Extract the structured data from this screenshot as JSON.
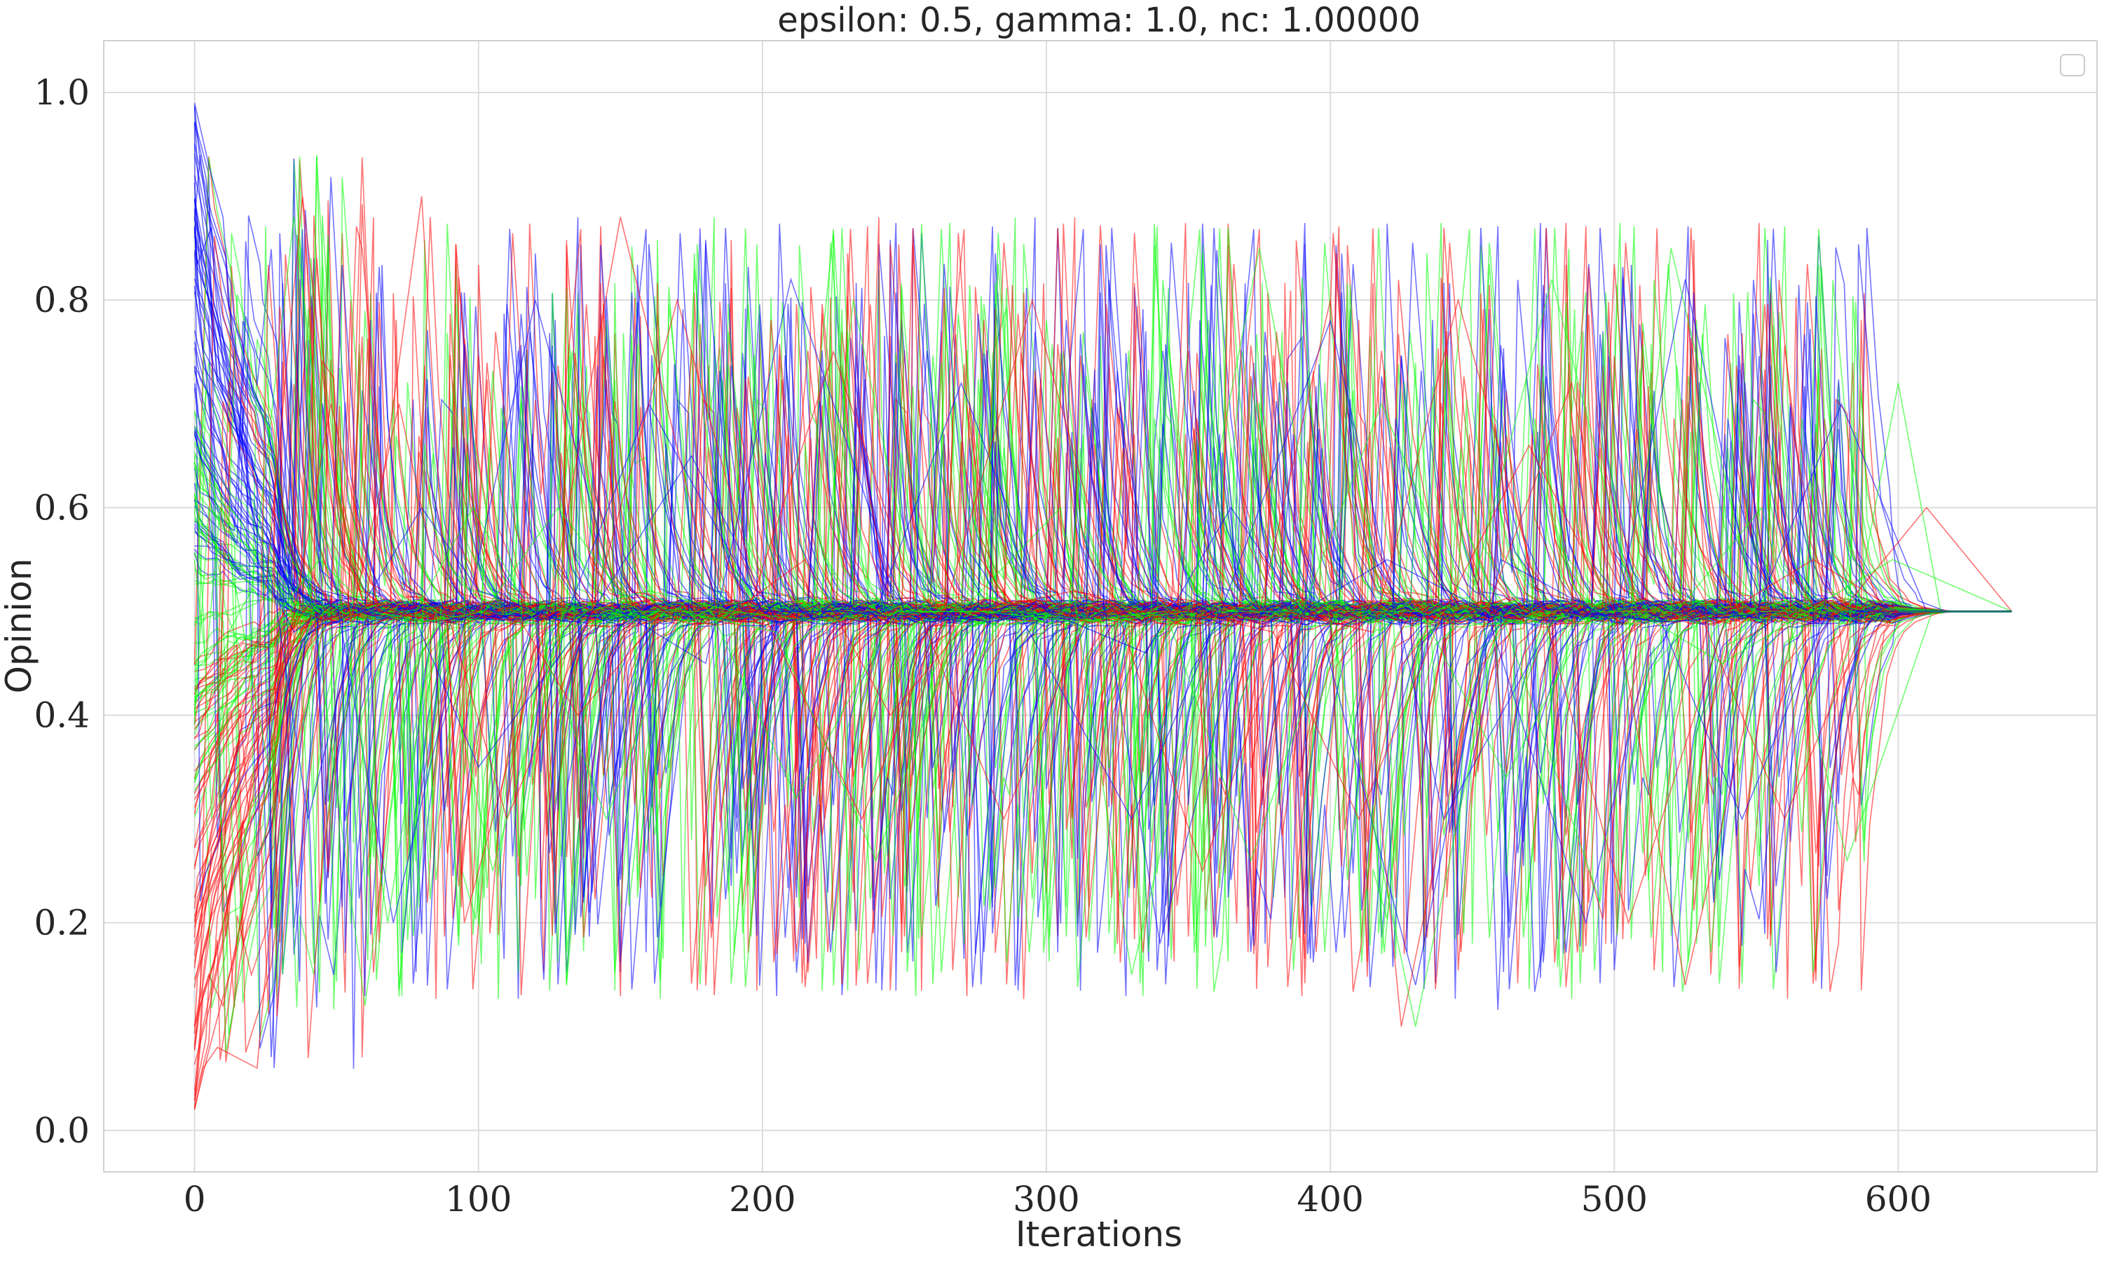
{
  "chart_data": {
    "type": "line",
    "title": "epsilon: 0.5, gamma: 1.0, nc: 1.00000",
    "xlabel": "Iterations",
    "ylabel": "Opinion",
    "xlim": [
      -32,
      670
    ],
    "ylim": [
      -0.04,
      1.05
    ],
    "xticks": [
      0,
      100,
      200,
      300,
      400,
      500,
      600
    ],
    "xtick_labels": [
      "0",
      "100",
      "200",
      "300",
      "400",
      "500",
      "600"
    ],
    "yticks": [
      0.0,
      0.2,
      0.4,
      0.6,
      0.8,
      1.0
    ],
    "ytick_labels": [
      "0.0",
      "0.2",
      "0.4",
      "0.6",
      "0.8",
      "1.0"
    ],
    "grid": true,
    "legend": {
      "placement": "top-right",
      "entries": []
    },
    "consensus_value": 0.5,
    "x_end": 640,
    "series_colors": [
      "#ff0000",
      "#00ff00",
      "#0000ff"
    ],
    "series": [
      {
        "color": "#0000ff",
        "x": [
          0,
          5,
          10,
          15,
          20,
          30,
          45,
          60,
          80,
          100,
          130,
          160,
          200,
          230,
          260,
          290,
          330,
          360,
          400,
          440,
          480,
          520,
          560,
          590,
          620,
          640
        ],
        "y": [
          0.99,
          0.93,
          0.88,
          0.7,
          0.6,
          0.55,
          0.52,
          0.51,
          0.6,
          0.52,
          0.49,
          0.7,
          0.5,
          0.5,
          0.49,
          0.5,
          0.3,
          0.49,
          0.78,
          0.3,
          0.5,
          0.49,
          0.5,
          0.5,
          0.5,
          0.5
        ]
      },
      {
        "color": "#0000ff",
        "x": [
          0,
          4,
          8,
          14,
          22,
          35,
          50,
          70,
          95,
          120,
          150,
          180,
          210,
          250,
          280,
          320,
          340,
          370,
          395,
          430,
          460,
          500,
          525,
          550,
          580,
          610,
          640
        ],
        "y": [
          0.95,
          0.9,
          0.82,
          0.76,
          0.55,
          0.48,
          0.51,
          0.2,
          0.49,
          0.8,
          0.5,
          0.45,
          0.82,
          0.5,
          0.49,
          0.51,
          0.18,
          0.5,
          0.5,
          0.14,
          0.55,
          0.49,
          0.82,
          0.5,
          0.7,
          0.5,
          0.5
        ]
      },
      {
        "color": "#0000ff",
        "x": [
          0,
          6,
          12,
          18,
          28,
          40,
          58,
          75,
          100,
          140,
          175,
          205,
          240,
          270,
          300,
          335,
          365,
          390,
          420,
          455,
          490,
          515,
          545,
          575,
          600,
          640
        ],
        "y": [
          0.92,
          0.85,
          0.72,
          0.62,
          0.52,
          0.3,
          0.5,
          0.51,
          0.35,
          0.5,
          0.65,
          0.49,
          0.5,
          0.72,
          0.5,
          0.46,
          0.6,
          0.5,
          0.55,
          0.5,
          0.2,
          0.5,
          0.3,
          0.5,
          0.5,
          0.5
        ]
      },
      {
        "color": "#ff0000",
        "x": [
          0,
          3,
          8,
          15,
          22,
          30,
          45,
          60,
          80,
          95,
          125,
          150,
          185,
          215,
          245,
          275,
          310,
          345,
          375,
          400,
          425,
          455,
          485,
          525,
          555,
          580,
          610,
          640
        ],
        "y": [
          0.02,
          0.06,
          0.08,
          0.07,
          0.06,
          0.3,
          0.48,
          0.5,
          0.9,
          0.2,
          0.5,
          0.88,
          0.49,
          0.55,
          0.4,
          0.5,
          0.52,
          0.49,
          0.5,
          0.8,
          0.1,
          0.5,
          0.72,
          0.14,
          0.5,
          0.5,
          0.6,
          0.5
        ]
      },
      {
        "color": "#ff0000",
        "x": [
          0,
          5,
          10,
          20,
          32,
          48,
          65,
          90,
          110,
          140,
          170,
          200,
          235,
          265,
          295,
          325,
          355,
          385,
          415,
          445,
          475,
          505,
          540,
          570,
          600,
          640
        ],
        "y": [
          0.1,
          0.15,
          0.12,
          0.25,
          0.45,
          0.7,
          0.5,
          0.49,
          0.3,
          0.5,
          0.8,
          0.5,
          0.3,
          0.51,
          0.8,
          0.5,
          0.25,
          0.5,
          0.48,
          0.8,
          0.5,
          0.2,
          0.5,
          0.55,
          0.5,
          0.5
        ]
      },
      {
        "color": "#ff0000",
        "x": [
          0,
          7,
          14,
          25,
          38,
          55,
          72,
          88,
          115,
          135,
          165,
          195,
          225,
          255,
          285,
          315,
          350,
          380,
          410,
          440,
          470,
          500,
          530,
          560,
          590,
          640
        ],
        "y": [
          0.2,
          0.3,
          0.35,
          0.52,
          0.9,
          0.49,
          0.7,
          0.5,
          0.49,
          0.4,
          0.5,
          0.5,
          0.75,
          0.5,
          0.3,
          0.5,
          0.5,
          0.48,
          0.3,
          0.5,
          0.66,
          0.5,
          0.5,
          0.3,
          0.5,
          0.5
        ]
      },
      {
        "color": "#00ff00",
        "x": [
          0,
          3,
          6,
          12,
          20,
          35,
          52,
          68,
          85,
          105,
          130,
          160,
          190,
          220,
          232,
          255,
          290,
          320,
          350,
          375,
          400,
          430,
          460,
          495,
          520,
          550,
          585,
          600,
          615,
          640
        ],
        "y": [
          0.65,
          0.5,
          0.3,
          0.48,
          0.52,
          0.88,
          0.5,
          0.2,
          0.5,
          0.25,
          0.5,
          0.52,
          0.5,
          0.49,
          0.8,
          0.5,
          0.5,
          0.49,
          0.5,
          0.85,
          0.49,
          0.1,
          0.5,
          0.22,
          0.85,
          0.5,
          0.5,
          0.72,
          0.5,
          0.5
        ]
      },
      {
        "color": "#00ff00",
        "x": [
          0,
          4,
          9,
          16,
          26,
          42,
          60,
          78,
          98,
          118,
          145,
          172,
          205,
          240,
          270,
          305,
          330,
          360,
          390,
          418,
          448,
          478,
          508,
          538,
          568,
          598,
          640
        ],
        "y": [
          0.55,
          0.45,
          0.6,
          0.5,
          0.35,
          0.5,
          0.12,
          0.5,
          0.6,
          0.5,
          0.3,
          0.5,
          0.48,
          0.26,
          0.5,
          0.6,
          0.15,
          0.5,
          0.5,
          0.7,
          0.5,
          0.82,
          0.5,
          0.45,
          0.5,
          0.55,
          0.5
        ]
      },
      {
        "color": "#00ff00",
        "x": [
          0,
          5,
          11,
          18,
          30,
          44,
          62,
          82,
          102,
          128,
          155,
          182,
          212,
          247,
          277,
          312,
          342,
          372,
          402,
          432,
          462,
          492,
          522,
          552,
          582,
          612,
          640
        ],
        "y": [
          0.4,
          0.6,
          0.5,
          0.45,
          0.5,
          0.55,
          0.5,
          0.49,
          0.5,
          0.6,
          0.5,
          0.5,
          0.32,
          0.5,
          0.5,
          0.49,
          0.5,
          0.26,
          0.5,
          0.5,
          0.34,
          0.5,
          0.5,
          0.6,
          0.26,
          0.5,
          0.5
        ]
      }
    ]
  }
}
